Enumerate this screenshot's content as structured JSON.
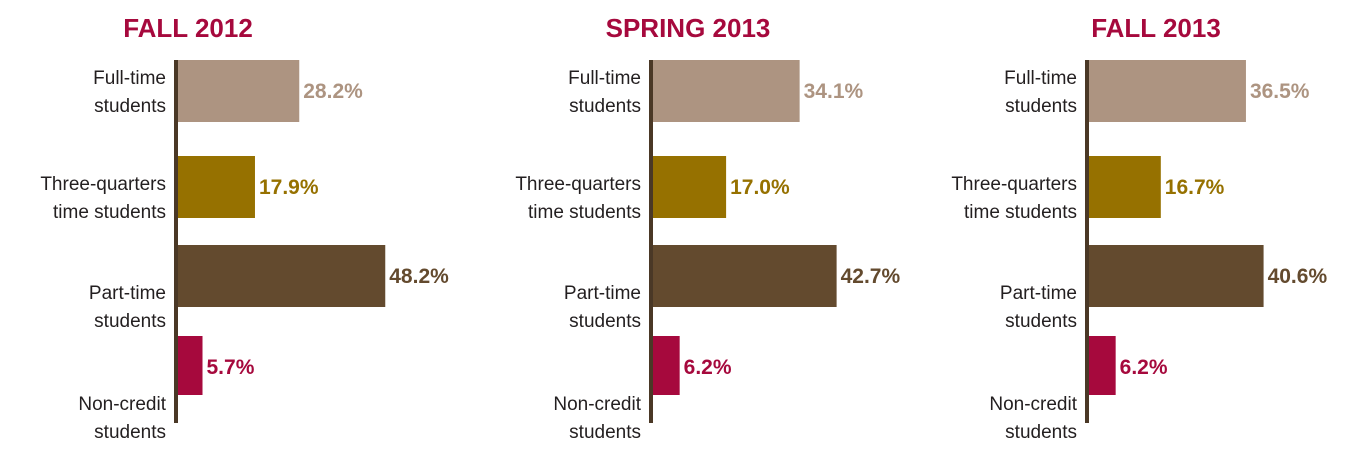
{
  "colors": {
    "title": "#a6093d",
    "axis": "#4a3826",
    "text": "#231f20",
    "categories": [
      "#ad9481",
      "#967100",
      "#634a2e",
      "#a6093d"
    ]
  },
  "chart_data": [
    {
      "type": "bar",
      "orientation": "horizontal",
      "title": "FALL 2012",
      "categories": [
        [
          "Full-time",
          "students"
        ],
        [
          "Three-quarters",
          "time students"
        ],
        [
          "Part-time",
          "students"
        ],
        [
          "Non-credit",
          "students"
        ]
      ],
      "values": [
        28.2,
        17.9,
        48.2,
        5.7
      ],
      "value_labels": [
        "28.2%",
        "17.9%",
        "48.2%",
        "5.7%"
      ],
      "xlim": [
        0,
        100
      ],
      "grid": false
    },
    {
      "type": "bar",
      "orientation": "horizontal",
      "title": "SPRING 2013",
      "categories": [
        [
          "Full-time",
          "students"
        ],
        [
          "Three-quarters",
          "time students"
        ],
        [
          "Part-time",
          "students"
        ],
        [
          "Non-credit",
          "students"
        ]
      ],
      "values": [
        34.1,
        17.0,
        42.7,
        6.2
      ],
      "value_labels": [
        "34.1%",
        "17.0%",
        "42.7%",
        "6.2%"
      ],
      "xlim": [
        0,
        100
      ],
      "grid": false
    },
    {
      "type": "bar",
      "orientation": "horizontal",
      "title": "FALL 2013",
      "categories": [
        [
          "Full-time",
          "students"
        ],
        [
          "Three-quarters",
          "time students"
        ],
        [
          "Part-time",
          "students"
        ],
        [
          "Non-credit",
          "students"
        ]
      ],
      "values": [
        36.5,
        16.7,
        40.6,
        6.2
      ],
      "value_labels": [
        "36.5%",
        "16.7%",
        "40.6%",
        "6.2%"
      ],
      "xlim": [
        0,
        100
      ],
      "grid": false
    }
  ]
}
